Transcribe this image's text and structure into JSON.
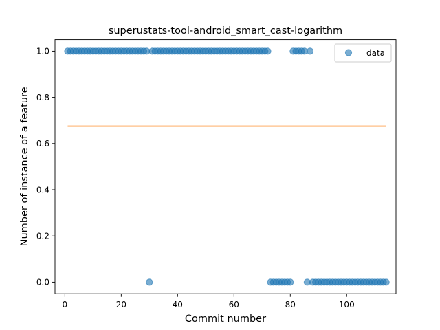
{
  "chart_data": {
    "type": "scatter",
    "title": "superustats-tool-android_smart_cast-logarithm",
    "xlabel": "Commit number",
    "ylabel": "Number of instance of a feature",
    "xlim": [
      -3.5,
      117.5
    ],
    "ylim": [
      -0.05,
      1.05
    ],
    "xticks": [
      0,
      20,
      40,
      60,
      80,
      100
    ],
    "xtick_labels": [
      "0",
      "20",
      "40",
      "60",
      "80",
      "100"
    ],
    "yticks": [
      0.0,
      0.2,
      0.4,
      0.6,
      0.8,
      1.0
    ],
    "ytick_labels": [
      "0.0",
      "0.2",
      "0.4",
      "0.6",
      "0.8",
      "1.0"
    ],
    "grid": false,
    "legend": {
      "placement": "top-right",
      "entries": [
        "data"
      ]
    },
    "colors": {
      "data": "#1f77b4",
      "fit": "#ff7f0e"
    },
    "series": [
      {
        "name": "data",
        "x": [
          1,
          2,
          3,
          4,
          5,
          6,
          7,
          8,
          9,
          10,
          11,
          12,
          13,
          14,
          15,
          16,
          17,
          18,
          19,
          20,
          21,
          22,
          23,
          24,
          25,
          26,
          27,
          28,
          29,
          30,
          31,
          32,
          33,
          34,
          35,
          36,
          37,
          38,
          39,
          40,
          41,
          42,
          43,
          44,
          45,
          46,
          47,
          48,
          49,
          50,
          51,
          52,
          53,
          54,
          55,
          56,
          57,
          58,
          59,
          60,
          61,
          62,
          63,
          64,
          65,
          66,
          67,
          68,
          69,
          70,
          71,
          72,
          73,
          74,
          75,
          76,
          77,
          78,
          79,
          80,
          81,
          82,
          83,
          84,
          85,
          86,
          87,
          88,
          89,
          90,
          91,
          92,
          93,
          94,
          95,
          96,
          97,
          98,
          99,
          100,
          101,
          102,
          103,
          104,
          105,
          106,
          107,
          108,
          109,
          110,
          111,
          112,
          113,
          114
        ],
        "y": [
          1,
          1,
          1,
          1,
          1,
          1,
          1,
          1,
          1,
          1,
          1,
          1,
          1,
          1,
          1,
          1,
          1,
          1,
          1,
          1,
          1,
          1,
          1,
          1,
          1,
          1,
          1,
          1,
          1,
          0,
          1,
          1,
          1,
          1,
          1,
          1,
          1,
          1,
          1,
          1,
          1,
          1,
          1,
          1,
          1,
          1,
          1,
          1,
          1,
          1,
          1,
          1,
          1,
          1,
          1,
          1,
          1,
          1,
          1,
          1,
          1,
          1,
          1,
          1,
          1,
          1,
          1,
          1,
          1,
          1,
          1,
          1,
          0,
          0,
          0,
          0,
          0,
          0,
          0,
          0,
          1,
          1,
          1,
          1,
          1,
          0,
          1,
          0,
          0,
          0,
          0,
          0,
          0,
          0,
          0,
          0,
          0,
          0,
          0,
          0,
          0,
          0,
          0,
          0,
          0,
          0,
          0,
          0,
          0,
          0,
          0,
          0,
          0,
          0
        ]
      },
      {
        "type": "line",
        "x": [
          1,
          114
        ],
        "y": [
          0.675,
          0.675
        ]
      }
    ]
  }
}
